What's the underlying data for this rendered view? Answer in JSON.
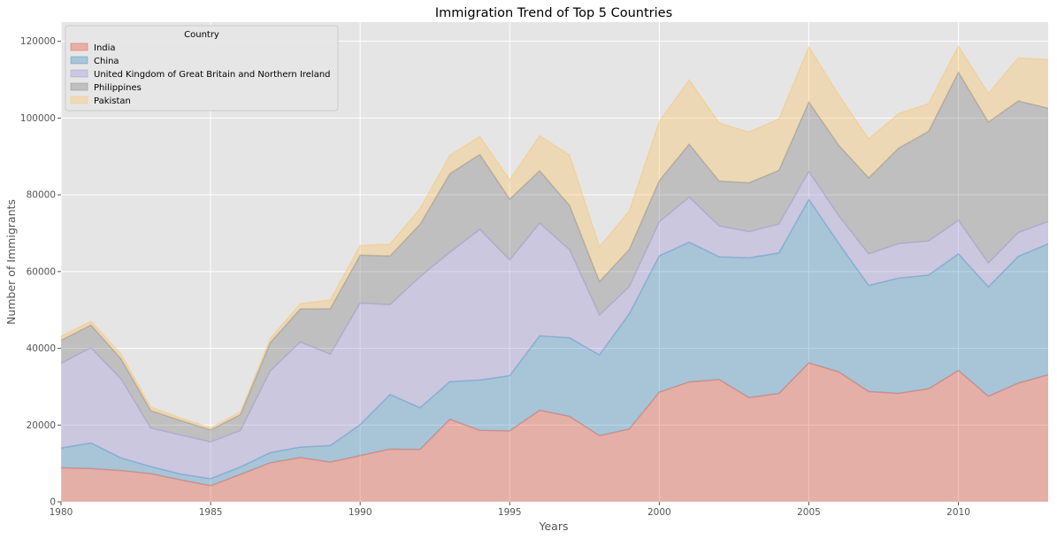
{
  "chart_data": {
    "type": "area",
    "stacked": true,
    "title": "Immigration Trend of Top 5 Countries",
    "xlabel": "Years",
    "ylabel": "Number of Immigrants",
    "xlim": [
      1980,
      2013
    ],
    "ylim": [
      0,
      125000
    ],
    "xticks": [
      1980,
      1985,
      1990,
      1995,
      2000,
      2005,
      2010
    ],
    "yticks": [
      0,
      20000,
      40000,
      60000,
      80000,
      100000,
      120000
    ],
    "grid": true,
    "legend": {
      "title": "Country",
      "position": "top-left"
    },
    "x": [
      1980,
      1981,
      1982,
      1983,
      1984,
      1985,
      1986,
      1987,
      1988,
      1989,
      1990,
      1991,
      1992,
      1993,
      1994,
      1995,
      1996,
      1997,
      1998,
      1999,
      2000,
      2001,
      2002,
      2003,
      2004,
      2005,
      2006,
      2007,
      2008,
      2009,
      2010,
      2011,
      2012,
      2013
    ],
    "series": [
      {
        "name": "India",
        "color": "#e24a33",
        "values": [
          8880,
          8670,
          8147,
          7338,
          5704,
          4211,
          7150,
          10189,
          11522,
          10343,
          12041,
          13734,
          13673,
          21496,
          18620,
          18489,
          23859,
          22268,
          17241,
          18974,
          28572,
          31223,
          31889,
          27155,
          28235,
          36210,
          33848,
          28742,
          28261,
          29456,
          34235,
          27509,
          30933,
          33087
        ]
      },
      {
        "name": "China",
        "color": "#348abd",
        "values": [
          5123,
          6682,
          3308,
          1863,
          1527,
          1816,
          1960,
          2643,
          2758,
          4323,
          8076,
          14255,
          10846,
          9817,
          13128,
          14398,
          19415,
          20475,
          21049,
          30069,
          35529,
          36434,
          31961,
          36439,
          36619,
          42584,
          33518,
          27642,
          30037,
          29622,
          30391,
          28502,
          33024,
          34129
        ]
      },
      {
        "name": "United Kingdom of Great Britain and Northern Ireland",
        "color": "#988ed5",
        "values": [
          22045,
          24796,
          20620,
          10015,
          10170,
          9564,
          9470,
          21337,
          27359,
          23795,
          31668,
          23380,
          34123,
          33720,
          39231,
          30145,
          29322,
          22965,
          10367,
          7045,
          8840,
          11728,
          8046,
          6797,
          7533,
          7258,
          7140,
          8216,
          8979,
          8876,
          8724,
          6204,
          6195,
          5827
        ]
      },
      {
        "name": "Philippines",
        "color": "#777777",
        "values": [
          6051,
          5921,
          5249,
          4562,
          3801,
          3150,
          4166,
          7360,
          8639,
          11865,
          12509,
          12718,
          13670,
          20479,
          19532,
          15864,
          13692,
          11549,
          8735,
          9734,
          10763,
          13836,
          11707,
          12758,
          14004,
          18139,
          18400,
          19837,
          24887,
          28573,
          38617,
          36765,
          34315,
          29544
        ]
      },
      {
        "name": "Pakistan",
        "color": "#fbc15e",
        "values": [
          978,
          972,
          1201,
          900,
          668,
          514,
          691,
          1072,
          1334,
          2261,
          2470,
          3079,
          4071,
          4777,
          4666,
          4994,
          9125,
          13073,
          9068,
          9979,
          15400,
          16708,
          15110,
          13205,
          13399,
          14314,
          13127,
          10124,
          8994,
          7217,
          6811,
          7468,
          11227,
          12603
        ]
      }
    ]
  }
}
